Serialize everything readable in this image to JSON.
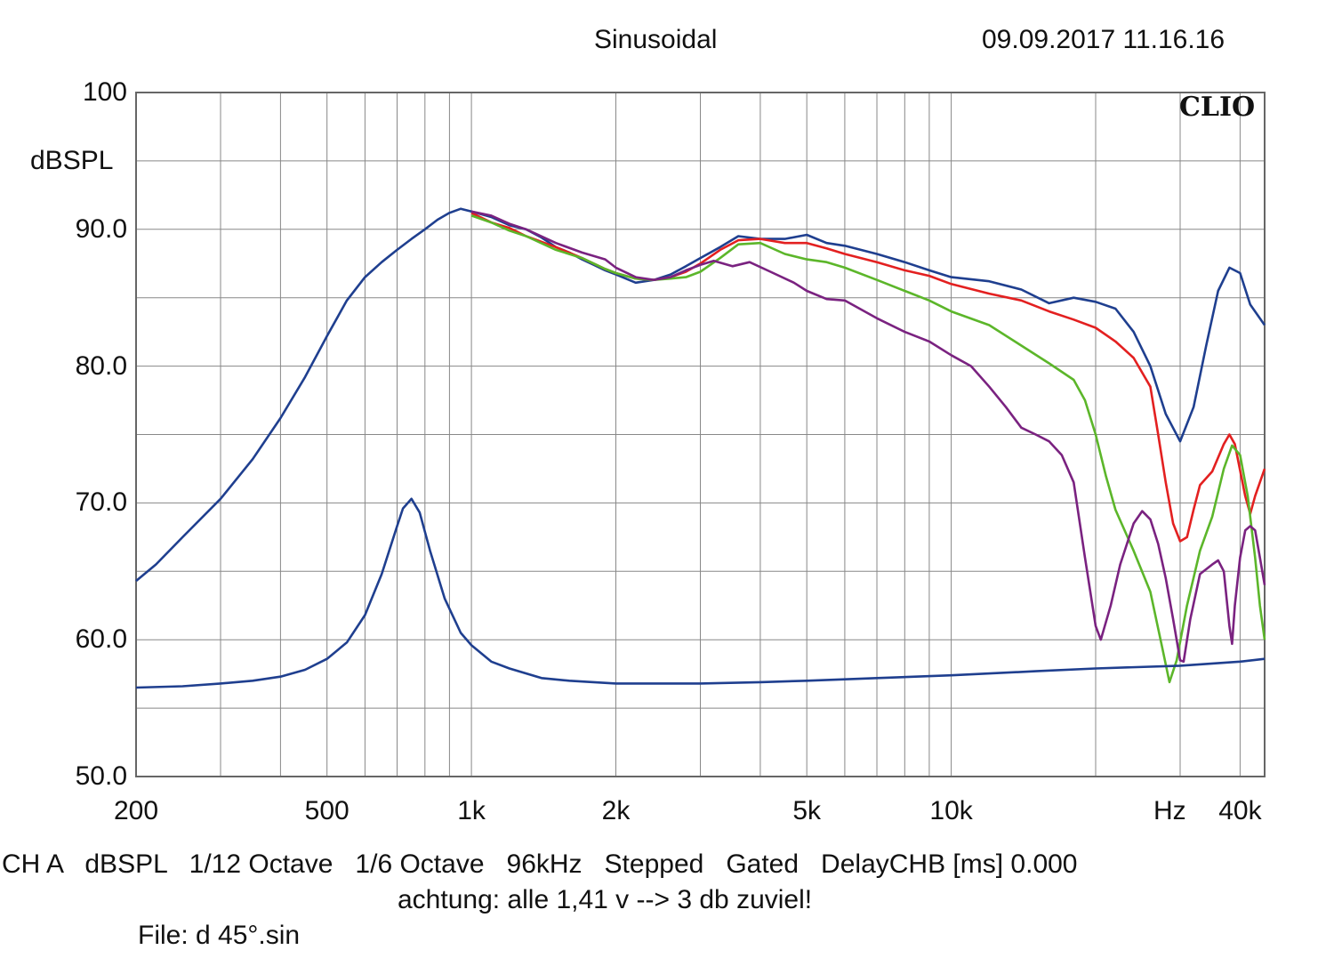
{
  "header": {
    "mode": "Sinusoidal",
    "datetime": "09.09.2017 11.16.16",
    "brand": "CLIO"
  },
  "footer": {
    "settings_line": "CH A   dBSPL   1/12 Octave   1/6 Octave   96kHz   Stepped   Gated   DelayCHB [ms] 0.000",
    "note": "achtung: alle 1,41 v --> 3 db zuviel!",
    "file": "File: d 45°.sin"
  },
  "colors": {
    "grid": "#888888",
    "blue": "#1f3f8f",
    "red": "#e32020",
    "green": "#5cb62a",
    "purple": "#7a2280"
  },
  "chart_data": {
    "type": "line",
    "xscale": "log",
    "xlim": [
      200,
      45000
    ],
    "ylim": [
      50,
      100
    ],
    "ylabel": "dBSPL",
    "xunit_label": "Hz",
    "y_ticks": [
      {
        "value": 100,
        "label": "100"
      },
      {
        "value": 90,
        "label": "90.0"
      },
      {
        "value": 80,
        "label": "80.0"
      },
      {
        "value": 70,
        "label": "70.0"
      },
      {
        "value": 60,
        "label": "60.0"
      },
      {
        "value": 50,
        "label": "50.0"
      }
    ],
    "x_ticks": [
      {
        "value": 200,
        "label": "200"
      },
      {
        "value": 500,
        "label": "500"
      },
      {
        "value": 1000,
        "label": "1k"
      },
      {
        "value": 2000,
        "label": "2k"
      },
      {
        "value": 5000,
        "label": "5k"
      },
      {
        "value": 10000,
        "label": "10k"
      },
      {
        "value": 40000,
        "label": "40k"
      }
    ],
    "x_grid": [
      200,
      300,
      400,
      500,
      600,
      700,
      800,
      900,
      1000,
      2000,
      3000,
      4000,
      5000,
      6000,
      7000,
      8000,
      9000,
      10000,
      20000,
      30000,
      40000
    ],
    "y_grid": [
      55,
      60,
      65,
      70,
      75,
      80,
      85,
      90,
      95
    ],
    "series": [
      {
        "color": "blue",
        "points": [
          [
            200,
            64.3
          ],
          [
            220,
            65.5
          ],
          [
            250,
            67.5
          ],
          [
            300,
            70.3
          ],
          [
            350,
            73.2
          ],
          [
            400,
            76.2
          ],
          [
            450,
            79.2
          ],
          [
            500,
            82.2
          ],
          [
            550,
            84.8
          ],
          [
            600,
            86.5
          ],
          [
            650,
            87.6
          ],
          [
            700,
            88.5
          ],
          [
            750,
            89.3
          ],
          [
            800,
            90.0
          ],
          [
            850,
            90.7
          ],
          [
            900,
            91.2
          ],
          [
            950,
            91.5
          ],
          [
            1000,
            91.3
          ],
          [
            1100,
            90.9
          ],
          [
            1200,
            90.3
          ],
          [
            1300,
            90.0
          ],
          [
            1400,
            89.4
          ],
          [
            1500,
            88.7
          ],
          [
            1600,
            88.3
          ],
          [
            1700,
            87.8
          ],
          [
            1800,
            87.4
          ],
          [
            1900,
            87.0
          ],
          [
            2000,
            86.7
          ],
          [
            2200,
            86.1
          ],
          [
            2400,
            86.3
          ],
          [
            2600,
            86.7
          ],
          [
            2800,
            87.3
          ],
          [
            3000,
            87.9
          ],
          [
            3300,
            88.7
          ],
          [
            3600,
            89.5
          ],
          [
            4000,
            89.3
          ],
          [
            4500,
            89.3
          ],
          [
            5000,
            89.6
          ],
          [
            5500,
            89.0
          ],
          [
            6000,
            88.8
          ],
          [
            7000,
            88.2
          ],
          [
            8000,
            87.6
          ],
          [
            9000,
            87.0
          ],
          [
            10000,
            86.5
          ],
          [
            12000,
            86.2
          ],
          [
            14000,
            85.6
          ],
          [
            16000,
            84.6
          ],
          [
            18000,
            85.0
          ],
          [
            20000,
            84.7
          ],
          [
            22000,
            84.2
          ],
          [
            24000,
            82.5
          ],
          [
            26000,
            80.0
          ],
          [
            28000,
            76.5
          ],
          [
            30000,
            74.5
          ],
          [
            32000,
            77.0
          ],
          [
            34000,
            81.5
          ],
          [
            36000,
            85.5
          ],
          [
            38000,
            87.2
          ],
          [
            40000,
            86.8
          ],
          [
            42000,
            84.5
          ],
          [
            45000,
            83.0
          ]
        ]
      },
      {
        "color": "red",
        "points": [
          [
            1000,
            91.2
          ],
          [
            1100,
            90.5
          ],
          [
            1200,
            90.1
          ],
          [
            1300,
            89.5
          ],
          [
            1500,
            88.7
          ],
          [
            1700,
            87.9
          ],
          [
            1900,
            87.1
          ],
          [
            2000,
            86.8
          ],
          [
            2200,
            86.4
          ],
          [
            2400,
            86.3
          ],
          [
            2600,
            86.5
          ],
          [
            2800,
            86.9
          ],
          [
            3000,
            87.5
          ],
          [
            3300,
            88.5
          ],
          [
            3600,
            89.2
          ],
          [
            4000,
            89.3
          ],
          [
            4500,
            89.0
          ],
          [
            5000,
            89.0
          ],
          [
            5500,
            88.6
          ],
          [
            6000,
            88.2
          ],
          [
            7000,
            87.6
          ],
          [
            8000,
            87.0
          ],
          [
            9000,
            86.6
          ],
          [
            10000,
            86.0
          ],
          [
            12000,
            85.3
          ],
          [
            14000,
            84.8
          ],
          [
            16000,
            84.0
          ],
          [
            18000,
            83.4
          ],
          [
            20000,
            82.8
          ],
          [
            22000,
            81.8
          ],
          [
            24000,
            80.6
          ],
          [
            26000,
            78.5
          ],
          [
            27000,
            75.0
          ],
          [
            28000,
            71.5
          ],
          [
            29000,
            68.5
          ],
          [
            30000,
            67.2
          ],
          [
            31000,
            67.5
          ],
          [
            32000,
            69.5
          ],
          [
            33000,
            71.3
          ],
          [
            35000,
            72.3
          ],
          [
            37000,
            74.3
          ],
          [
            38000,
            75.0
          ],
          [
            39000,
            74.3
          ],
          [
            41000,
            70.5
          ],
          [
            42000,
            69.2
          ],
          [
            43000,
            70.5
          ],
          [
            45000,
            72.5
          ]
        ]
      },
      {
        "color": "green",
        "points": [
          [
            1000,
            91.0
          ],
          [
            1100,
            90.5
          ],
          [
            1200,
            89.9
          ],
          [
            1300,
            89.5
          ],
          [
            1500,
            88.5
          ],
          [
            1700,
            87.9
          ],
          [
            1900,
            87.1
          ],
          [
            2000,
            86.8
          ],
          [
            2200,
            86.4
          ],
          [
            2400,
            86.3
          ],
          [
            2600,
            86.4
          ],
          [
            2800,
            86.5
          ],
          [
            3000,
            86.9
          ],
          [
            3300,
            87.9
          ],
          [
            3600,
            88.9
          ],
          [
            4000,
            89.0
          ],
          [
            4500,
            88.2
          ],
          [
            5000,
            87.8
          ],
          [
            5500,
            87.6
          ],
          [
            6000,
            87.2
          ],
          [
            7000,
            86.3
          ],
          [
            8000,
            85.5
          ],
          [
            9000,
            84.8
          ],
          [
            10000,
            84.0
          ],
          [
            12000,
            83.0
          ],
          [
            14000,
            81.5
          ],
          [
            16000,
            80.2
          ],
          [
            18000,
            79.0
          ],
          [
            19000,
            77.5
          ],
          [
            20000,
            75.0
          ],
          [
            21000,
            72.0
          ],
          [
            22000,
            69.5
          ],
          [
            24000,
            66.5
          ],
          [
            26000,
            63.5
          ],
          [
            27500,
            59.5
          ],
          [
            28500,
            56.9
          ],
          [
            29500,
            58.5
          ],
          [
            31000,
            62.5
          ],
          [
            33000,
            66.5
          ],
          [
            35000,
            69.0
          ],
          [
            37000,
            72.5
          ],
          [
            38500,
            74.2
          ],
          [
            40000,
            73.5
          ],
          [
            41500,
            70.5
          ],
          [
            43000,
            66.0
          ],
          [
            44000,
            62.5
          ],
          [
            45000,
            60.0
          ]
        ]
      },
      {
        "color": "purple",
        "points": [
          [
            1000,
            91.3
          ],
          [
            1100,
            91.0
          ],
          [
            1200,
            90.4
          ],
          [
            1300,
            90.0
          ],
          [
            1500,
            89.0
          ],
          [
            1700,
            88.3
          ],
          [
            1900,
            87.8
          ],
          [
            2000,
            87.2
          ],
          [
            2200,
            86.5
          ],
          [
            2400,
            86.3
          ],
          [
            2600,
            86.5
          ],
          [
            2800,
            87.0
          ],
          [
            3000,
            87.4
          ],
          [
            3200,
            87.7
          ],
          [
            3500,
            87.3
          ],
          [
            3800,
            87.6
          ],
          [
            4200,
            86.9
          ],
          [
            4700,
            86.1
          ],
          [
            5000,
            85.5
          ],
          [
            5500,
            84.9
          ],
          [
            6000,
            84.8
          ],
          [
            7000,
            83.5
          ],
          [
            8000,
            82.5
          ],
          [
            9000,
            81.8
          ],
          [
            10000,
            80.8
          ],
          [
            11000,
            80.0
          ],
          [
            12000,
            78.5
          ],
          [
            13000,
            77.0
          ],
          [
            14000,
            75.5
          ],
          [
            15000,
            75.0
          ],
          [
            16000,
            74.5
          ],
          [
            17000,
            73.5
          ],
          [
            18000,
            71.5
          ],
          [
            19000,
            66.0
          ],
          [
            20000,
            61.0
          ],
          [
            20500,
            60.0
          ],
          [
            21500,
            62.5
          ],
          [
            22500,
            65.5
          ],
          [
            24000,
            68.5
          ],
          [
            25000,
            69.4
          ],
          [
            26000,
            68.8
          ],
          [
            27000,
            67.0
          ],
          [
            28000,
            64.5
          ],
          [
            29000,
            61.5
          ],
          [
            30000,
            58.5
          ],
          [
            30500,
            58.4
          ],
          [
            31500,
            61.5
          ],
          [
            33000,
            64.8
          ],
          [
            35000,
            65.5
          ],
          [
            36000,
            65.8
          ],
          [
            37000,
            65.0
          ],
          [
            38000,
            61.0
          ],
          [
            38500,
            59.7
          ],
          [
            39000,
            62.5
          ],
          [
            40000,
            66.0
          ],
          [
            41000,
            68.0
          ],
          [
            42000,
            68.3
          ],
          [
            43000,
            68.0
          ],
          [
            44000,
            66.0
          ],
          [
            45000,
            64.0
          ]
        ]
      },
      {
        "color": "blue",
        "points": [
          [
            200,
            56.5
          ],
          [
            250,
            56.6
          ],
          [
            300,
            56.8
          ],
          [
            350,
            57.0
          ],
          [
            400,
            57.3
          ],
          [
            450,
            57.8
          ],
          [
            500,
            58.6
          ],
          [
            550,
            59.8
          ],
          [
            600,
            61.8
          ],
          [
            650,
            64.8
          ],
          [
            700,
            68.3
          ],
          [
            720,
            69.6
          ],
          [
            750,
            70.3
          ],
          [
            780,
            69.3
          ],
          [
            820,
            66.5
          ],
          [
            880,
            63.0
          ],
          [
            950,
            60.5
          ],
          [
            1000,
            59.6
          ],
          [
            1100,
            58.4
          ],
          [
            1200,
            57.9
          ],
          [
            1400,
            57.2
          ],
          [
            1600,
            57.0
          ],
          [
            2000,
            56.8
          ],
          [
            3000,
            56.8
          ],
          [
            4000,
            56.9
          ],
          [
            5000,
            57.0
          ],
          [
            7000,
            57.2
          ],
          [
            10000,
            57.4
          ],
          [
            15000,
            57.7
          ],
          [
            20000,
            57.9
          ],
          [
            30000,
            58.1
          ],
          [
            40000,
            58.4
          ],
          [
            45000,
            58.6
          ]
        ]
      }
    ]
  }
}
